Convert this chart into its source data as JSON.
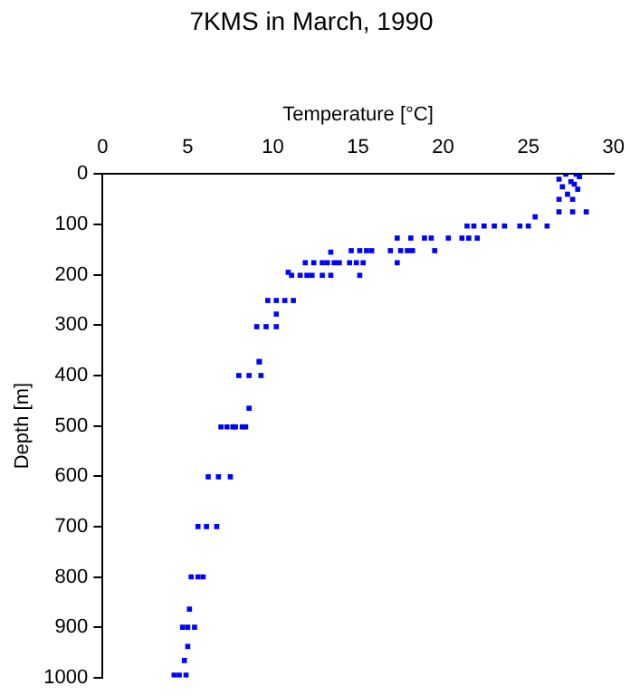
{
  "chart_data": {
    "type": "scatter",
    "title": "7KMS in March, 1990",
    "xlabel": "Temperature [°C]",
    "ylabel": "Depth [m]",
    "xlim": [
      0,
      30
    ],
    "xticks": [
      0,
      5,
      10,
      15,
      20,
      25,
      30
    ],
    "ylim": [
      1000,
      0
    ],
    "yticks": [
      0,
      100,
      200,
      300,
      400,
      500,
      600,
      700,
      800,
      900,
      1000
    ],
    "grid": false,
    "legend": false,
    "marker": "square",
    "series": [
      {
        "color": "#0000ff",
        "x": [
          27.2,
          27.8,
          28.0,
          26.8,
          27.5,
          27.7,
          27.0,
          27.9,
          27.3,
          26.8,
          27.6,
          26.8,
          27.6,
          28.4,
          25.4,
          21.4,
          21.8,
          22.4,
          23.0,
          23.6,
          24.5,
          25.0,
          26.1,
          17.3,
          18.1,
          18.9,
          19.3,
          20.3,
          21.1,
          21.5,
          22.0,
          13.4,
          14.6,
          15.1,
          15.5,
          15.8,
          16.9,
          17.5,
          17.9,
          18.2,
          19.5,
          11.9,
          12.4,
          12.9,
          13.2,
          13.6,
          13.9,
          14.5,
          14.9,
          15.3,
          17.3,
          10.9,
          11.1,
          11.6,
          12.0,
          12.3,
          12.9,
          13.4,
          15.1,
          9.7,
          10.2,
          10.7,
          11.2,
          10.2,
          9.05,
          9.6,
          10.2,
          9.2,
          9.2,
          8.0,
          8.6,
          9.3,
          8.6,
          6.95,
          7.3,
          7.65,
          7.8,
          8.2,
          8.4,
          6.2,
          6.8,
          7.5,
          5.6,
          6.1,
          6.7,
          5.2,
          5.6,
          5.9,
          5.1,
          4.7,
          5.0,
          5.4,
          5.0,
          4.8,
          4.2,
          4.5,
          4.9
        ],
        "values": [
          0,
          0,
          5,
          10,
          15,
          20,
          25,
          30,
          40,
          50,
          50,
          75,
          75,
          75,
          85,
          103,
          103,
          103,
          103,
          103,
          103,
          103,
          103,
          127,
          127,
          127,
          127,
          127,
          127,
          127,
          127,
          155,
          152,
          152,
          152,
          152,
          152,
          152,
          152,
          152,
          152,
          176,
          176,
          176,
          176,
          176,
          176,
          176,
          176,
          176,
          176,
          195,
          201,
          201,
          201,
          201,
          201,
          201,
          201,
          251,
          251,
          251,
          251,
          278,
          303,
          303,
          303,
          373,
          372,
          400,
          400,
          400,
          465,
          502,
          502,
          502,
          502,
          502,
          502,
          601,
          601,
          601,
          700,
          700,
          700,
          800,
          800,
          800,
          864,
          900,
          900,
          900,
          938,
          966,
          995,
          995,
          995
        ]
      }
    ]
  }
}
